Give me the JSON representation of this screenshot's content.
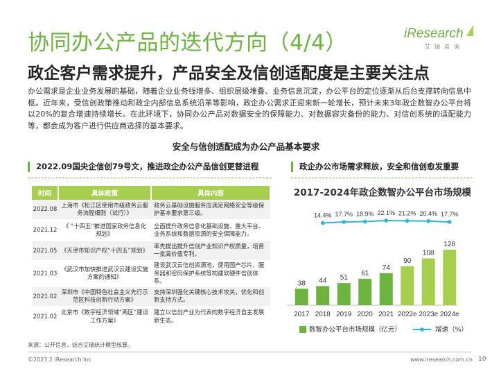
{
  "header": {
    "title": "协同办公产品的迭代方向（4/4）",
    "subtitle": "政企客户需求提升，产品安全及信创适配度是主要关注点"
  },
  "logo": {
    "word_i": "i",
    "word_rest": "Research",
    "sub": "艾瑞咨询",
    "colors": {
      "primary": "#6cb33f",
      "light": "#a5cf4c"
    }
  },
  "intro": "办公需求是企业业务发展的基础，随着企业业务线增多、组织层级堆叠、业务信息沉淀，办公平台的定位逐渐从后台支撑转向信息中枢。近年来，受信创政策推动和政企内部信息系统沿革等影响，政企办公需求正迎来新一轮增长，预计未来3年政企数智办公平台将以20%的复合增速持续增长。在此环境下，协同办公产品对数据安全的保障能力、对数据容灾备份的能力、对信创系统的适配能力等，都会成为客户进行供应商选择的基本要求。",
  "section_heading": "安全与信创适配成为办公产品基本要求",
  "left_panel": {
    "heading": "2022.09国央企信创79号文，推进政企办公产品信创更替进程",
    "columns": [
      "时间",
      "具体政策",
      "具体内容"
    ],
    "rows": [
      {
        "time": "2022.08",
        "policy": "上海市《松江区使用市级政务云服务流程细则（试行）》",
        "content": "政务云基础设施服务应满足网络安全等级保护基本要求第三级。"
      },
      {
        "time": "2021.12",
        "policy": "《 “十四五”推进国家政务信息化规划》",
        "content": "全面提升政务信息化基础设施、重大平台、业务系统和数据资源的安全保障能力。"
      },
      {
        "time": "2021.05",
        "policy": "《天津市知识产权“十四五”规划》",
        "content": "率先提出提升信创产业知识产权质量，培育一批高价值专利。"
      },
      {
        "time": "2021.03",
        "policy": "《武汉市加快推进武汉云建设实施方案的通知》",
        "content": "建设武汉云信创资源池，使用国产芯片、服务器和密码保护系统等构建软硬件信创体系。"
      },
      {
        "time": "2021.02",
        "policy": "深圳市《中国特色社会主义先行示范区科技创新行动方案》",
        "content": "支持深圳强化关键核心技术攻关，优化和创新支持方式。"
      },
      {
        "time": "2021.02",
        "policy": "北京市《数字经济领域“两区”建设工作方案》",
        "content": "建立以信创产业为代表的数字经济自主发展新生态。"
      }
    ]
  },
  "right_panel": {
    "heading": "政企办公市场需求释放，安全和信创愈发重要"
  },
  "chart_data": {
    "type": "bar",
    "title": "2017-2024年政企数智办公平台市场规模",
    "categories": [
      "2017",
      "2018",
      "2019",
      "2020",
      "2021",
      "2022e",
      "2023e",
      "2024e"
    ],
    "series": [
      {
        "name": "数智办公平台市场规模（亿元）",
        "type": "bar",
        "values": [
          38,
          44,
          51,
          61,
          74,
          90,
          108,
          128
        ],
        "colors": [
          "#6cb33f",
          "#6cb33f",
          "#6cb33f",
          "#6cb33f",
          "#6cb33f",
          "#a5cf4c",
          "#a5cf4c",
          "#a5cf4c"
        ]
      },
      {
        "name": "增速（%）",
        "type": "line",
        "values": [
          null,
          14.4,
          17.7,
          18.9,
          22.1,
          21.2,
          20.4,
          17.7
        ],
        "labels": [
          "",
          "14.4%",
          "17.7%",
          "18.9%",
          "22.1%",
          "21.2%",
          "20.4%",
          "17.7%"
        ],
        "color": "#29b4e4"
      }
    ],
    "grid": false,
    "legend": "bottom"
  },
  "footer": {
    "source": "来源：公开信息，结合艾瑞统计模型核算。",
    "copyright": "©2023.2 iResearch Inc",
    "website": "www.iresearch.com.cn",
    "page": "10"
  }
}
